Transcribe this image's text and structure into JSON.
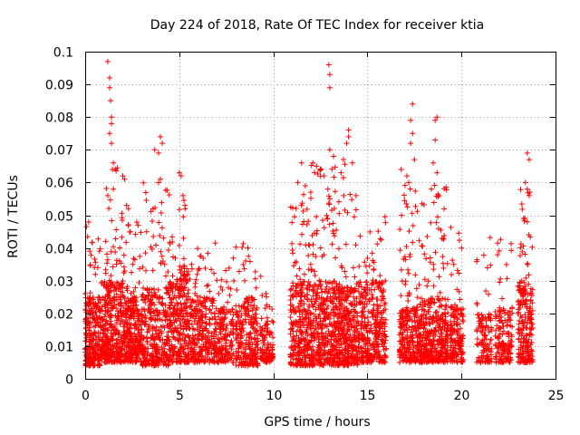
{
  "chart_data": {
    "type": "scatter",
    "title": "Day 224 of 2018, Rate Of TEC Index for receiver ktia",
    "xlabel": "GPS time / hours",
    "ylabel": "ROTI / TECUs",
    "xlim": [
      0,
      25
    ],
    "ylim": [
      0,
      0.1
    ],
    "grid": true,
    "marker": "+",
    "marker_color": "#ff0000",
    "xticks": [
      0,
      5,
      10,
      15,
      20,
      25
    ],
    "xtick_labels": [
      "0",
      "5",
      "10",
      "15",
      "20",
      "25"
    ],
    "yticks": [
      0,
      0.01,
      0.02,
      0.03,
      0.04,
      0.05,
      0.06,
      0.07,
      0.08,
      0.09,
      0.1
    ],
    "ytick_labels": [
      "0",
      "0.01",
      "0.02",
      "0.03",
      "0.04",
      "0.05",
      "0.06",
      "0.07",
      "0.08",
      "0.09",
      "0.1"
    ],
    "series": [
      {
        "name": "ROTI",
        "density_segments": [
          {
            "x_range": [
              0.0,
              0.8
            ],
            "n": 260,
            "base": [
              0.004,
              0.025
            ],
            "peak": 0.05
          },
          {
            "x_range": [
              0.8,
              1.0
            ],
            "n": 40,
            "base": [
              0.006,
              0.02
            ],
            "peak": 0.03
          },
          {
            "x_range": [
              1.0,
              2.0
            ],
            "n": 320,
            "base": [
              0.005,
              0.03
            ],
            "peak": 0.065
          },
          {
            "x_range": [
              2.0,
              3.0
            ],
            "n": 280,
            "base": [
              0.005,
              0.025
            ],
            "peak": 0.048
          },
          {
            "x_range": [
              3.0,
              4.5
            ],
            "n": 340,
            "base": [
              0.004,
              0.028
            ],
            "peak": 0.06
          },
          {
            "x_range": [
              4.5,
              5.0
            ],
            "n": 120,
            "base": [
              0.005,
              0.03
            ],
            "peak": 0.044
          },
          {
            "x_range": [
              5.0,
              5.5
            ],
            "n": 150,
            "base": [
              0.005,
              0.035
            ],
            "peak": 0.055
          },
          {
            "x_range": [
              5.5,
              7.0
            ],
            "n": 300,
            "base": [
              0.005,
              0.025
            ],
            "peak": 0.042
          },
          {
            "x_range": [
              7.0,
              7.9
            ],
            "n": 160,
            "base": [
              0.005,
              0.022
            ],
            "peak": 0.04
          },
          {
            "x_range": [
              8.0,
              9.2
            ],
            "n": 240,
            "base": [
              0.004,
              0.025
            ],
            "peak": 0.045
          },
          {
            "x_range": [
              9.3,
              10.0
            ],
            "n": 110,
            "base": [
              0.005,
              0.018
            ],
            "peak": 0.036
          },
          {
            "x_range": [
              10.9,
              12.0
            ],
            "n": 300,
            "base": [
              0.004,
              0.03
            ],
            "peak": 0.06
          },
          {
            "x_range": [
              12.0,
              13.5
            ],
            "n": 420,
            "base": [
              0.004,
              0.03
            ],
            "peak": 0.066
          },
          {
            "x_range": [
              13.5,
              14.5
            ],
            "n": 300,
            "base": [
              0.004,
              0.028
            ],
            "peak": 0.07
          },
          {
            "x_range": [
              14.5,
              16.0
            ],
            "n": 340,
            "base": [
              0.005,
              0.03
            ],
            "peak": 0.05
          },
          {
            "x_range": [
              16.7,
              17.6
            ],
            "n": 220,
            "base": [
              0.005,
              0.022
            ],
            "peak": 0.06
          },
          {
            "x_range": [
              17.6,
              18.5
            ],
            "n": 230,
            "base": [
              0.005,
              0.025
            ],
            "peak": 0.055
          },
          {
            "x_range": [
              18.5,
              19.3
            ],
            "n": 200,
            "base": [
              0.005,
              0.025
            ],
            "peak": 0.06
          },
          {
            "x_range": [
              19.4,
              20.1
            ],
            "n": 160,
            "base": [
              0.005,
              0.022
            ],
            "peak": 0.048
          },
          {
            "x_range": [
              20.8,
              21.6
            ],
            "n": 120,
            "base": [
              0.005,
              0.02
            ],
            "peak": 0.045
          },
          {
            "x_range": [
              21.8,
              22.7
            ],
            "n": 150,
            "base": [
              0.005,
              0.022
            ],
            "peak": 0.043
          },
          {
            "x_range": [
              23.0,
              23.8
            ],
            "n": 220,
            "base": [
              0.005,
              0.03
            ],
            "peak": 0.06
          }
        ],
        "spikes": [
          [
            1.2,
            0.097
          ],
          [
            1.3,
            0.092
          ],
          [
            1.3,
            0.089
          ],
          [
            1.35,
            0.085
          ],
          [
            1.4,
            0.08
          ],
          [
            1.4,
            0.078
          ],
          [
            1.3,
            0.075
          ],
          [
            1.4,
            0.072
          ],
          [
            1.5,
            0.066
          ],
          [
            1.45,
            0.064
          ],
          [
            1.5,
            0.058
          ],
          [
            1.2,
            0.056
          ],
          [
            2.0,
            0.062
          ],
          [
            2.1,
            0.061
          ],
          [
            2.2,
            0.053
          ],
          [
            2.3,
            0.052
          ],
          [
            3.7,
            0.07
          ],
          [
            3.9,
            0.069
          ],
          [
            4.0,
            0.074
          ],
          [
            4.1,
            0.072
          ],
          [
            4.0,
            0.061
          ],
          [
            3.9,
            0.06
          ],
          [
            5.0,
            0.063
          ],
          [
            5.1,
            0.062
          ],
          [
            5.2,
            0.056
          ],
          [
            5.3,
            0.053
          ],
          [
            11.5,
            0.066
          ],
          [
            11.3,
            0.06
          ],
          [
            11.7,
            0.059
          ],
          [
            12.1,
            0.066
          ],
          [
            12.3,
            0.065
          ],
          [
            12.5,
            0.064
          ],
          [
            12.7,
            0.062
          ],
          [
            12.9,
            0.058
          ],
          [
            12.95,
            0.096
          ],
          [
            13.0,
            0.093
          ],
          [
            13.0,
            0.089
          ],
          [
            13.0,
            0.07
          ],
          [
            13.2,
            0.068
          ],
          [
            13.6,
            0.063
          ],
          [
            13.9,
            0.072
          ],
          [
            14.0,
            0.074
          ],
          [
            14.0,
            0.076
          ],
          [
            14.2,
            0.066
          ],
          [
            14.4,
            0.056
          ],
          [
            17.4,
            0.084
          ],
          [
            17.3,
            0.079
          ],
          [
            17.4,
            0.075
          ],
          [
            17.3,
            0.072
          ],
          [
            17.5,
            0.067
          ],
          [
            16.8,
            0.064
          ],
          [
            17.1,
            0.062
          ],
          [
            17.2,
            0.06
          ],
          [
            18.6,
            0.079
          ],
          [
            18.7,
            0.08
          ],
          [
            18.6,
            0.073
          ],
          [
            18.5,
            0.066
          ],
          [
            18.7,
            0.063
          ],
          [
            18.4,
            0.058
          ],
          [
            18.8,
            0.056
          ],
          [
            23.5,
            0.069
          ],
          [
            23.6,
            0.067
          ],
          [
            23.4,
            0.06
          ],
          [
            23.5,
            0.058
          ],
          [
            23.6,
            0.056
          ],
          [
            23.3,
            0.049
          ],
          [
            23.5,
            0.048
          ]
        ]
      }
    ]
  }
}
